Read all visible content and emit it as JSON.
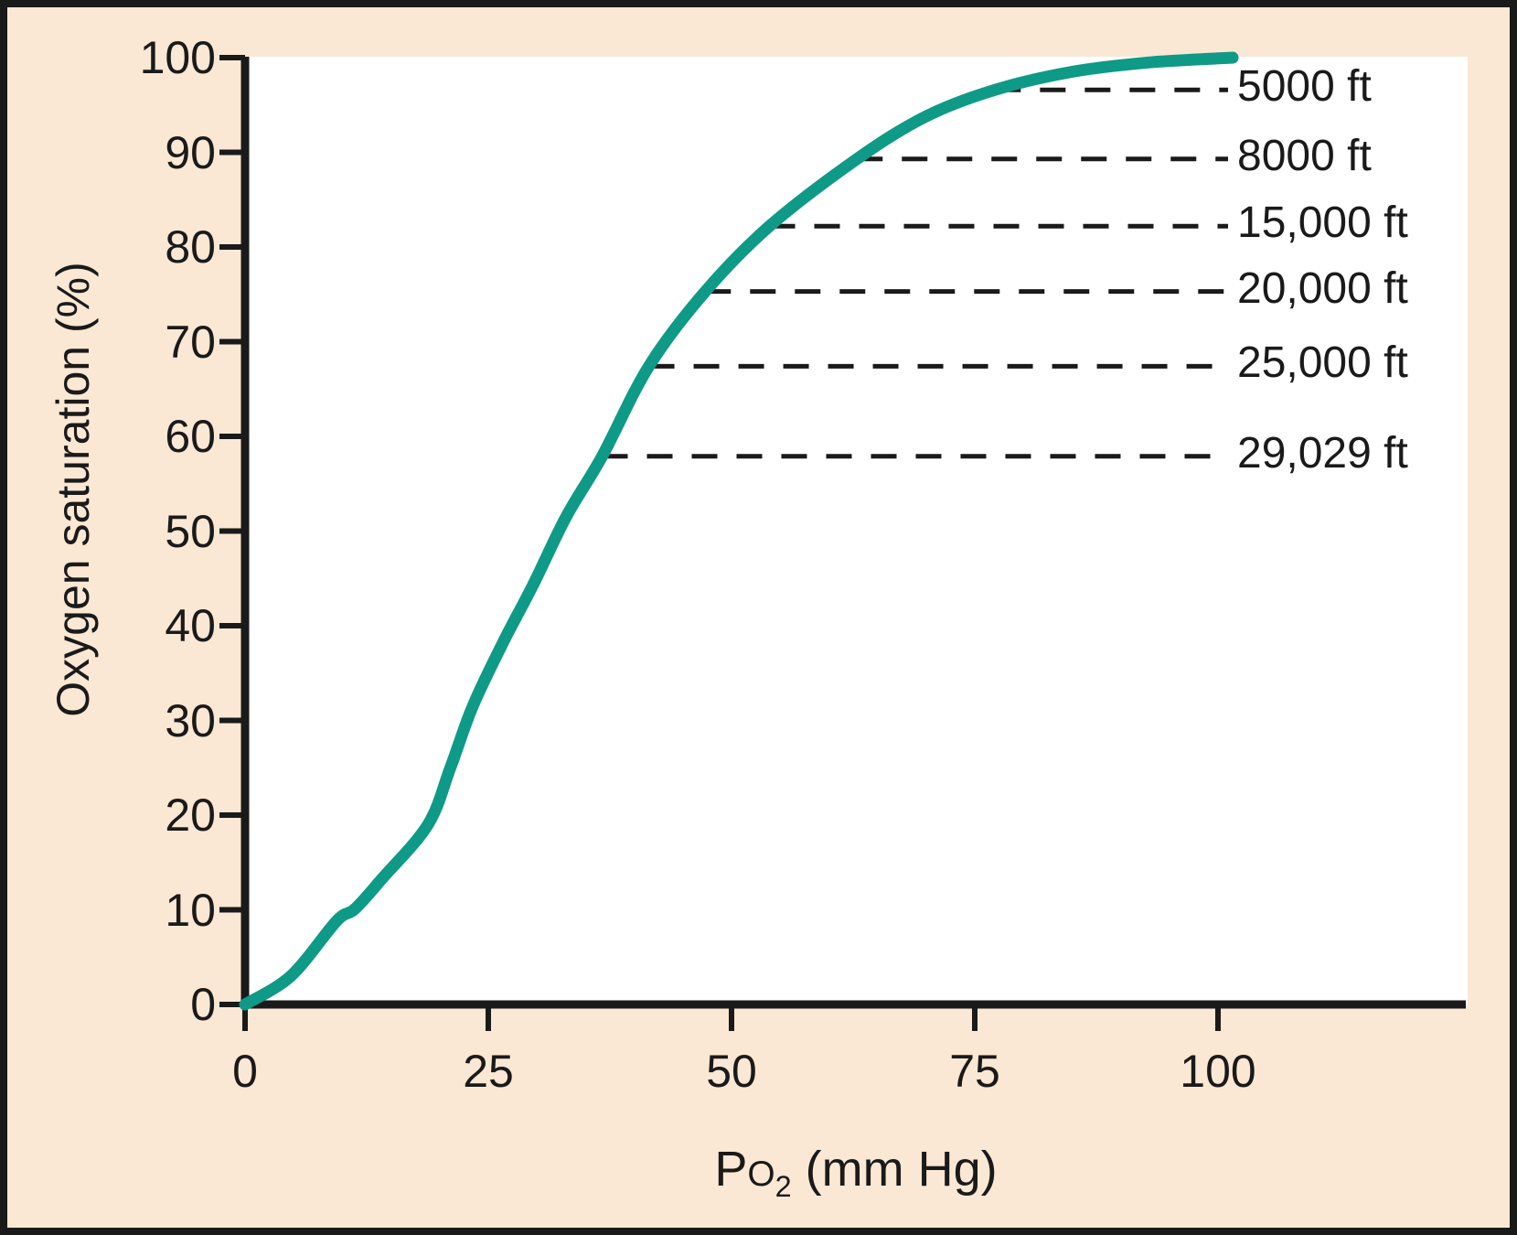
{
  "figure": {
    "background_color": "#FBE8D4",
    "plot_background": "#FFFFFF",
    "curve_color": "#0E9A86",
    "axis_color": "#1A1A1A",
    "dash_color": "#1A1A1A",
    "border_color": "#1A1A1A"
  },
  "chart_data": {
    "type": "line",
    "title": "",
    "xlabel": "Po2 (mm Hg)",
    "xlabel_parts": {
      "p": "P",
      "o": "O",
      "sub": "2",
      "rest": " (mm Hg)"
    },
    "ylabel": "Oxygen saturation (%)",
    "xlim": [
      0,
      125.5
    ],
    "ylim": [
      0,
      100
    ],
    "x_ticks": [
      0,
      25,
      50,
      75,
      100
    ],
    "y_ticks": [
      0,
      10,
      20,
      30,
      40,
      50,
      60,
      70,
      80,
      90,
      100
    ],
    "grid": false,
    "legend": false,
    "series": [
      {
        "name": "oxygen-saturation-curve",
        "x": [
          0,
          4.7,
          9.4,
          11.3,
          14.1,
          18.8,
          21.1,
          23.4,
          26.5,
          29.6,
          33,
          36.7,
          41.5,
          47.3,
          53.9,
          62.9,
          70,
          77.1,
          85,
          93,
          101.5
        ],
        "y": [
          0,
          3,
          8.8,
          10.1,
          13.3,
          19,
          25,
          31.5,
          38.2,
          44.3,
          51.5,
          57.9,
          67.4,
          75.3,
          82.2,
          89.3,
          93.8,
          96.6,
          98.5,
          99.5,
          100
        ]
      }
    ],
    "altitude_lines": [
      {
        "label": "5000 ft",
        "saturation": 96.6,
        "po2_at_curve": 77.1
      },
      {
        "label": "8000 ft",
        "saturation": 89.3,
        "po2_at_curve": 62.9
      },
      {
        "label": "15,000 ft",
        "saturation": 82.2,
        "po2_at_curve": 53.9
      },
      {
        "label": "20,000 ft",
        "saturation": 75.3,
        "po2_at_curve": 47.3
      },
      {
        "label": "25,000 ft",
        "saturation": 67.4,
        "po2_at_curve": 41.5
      },
      {
        "label": "29,029 ft",
        "saturation": 57.9,
        "po2_at_curve": 36.7
      }
    ]
  }
}
